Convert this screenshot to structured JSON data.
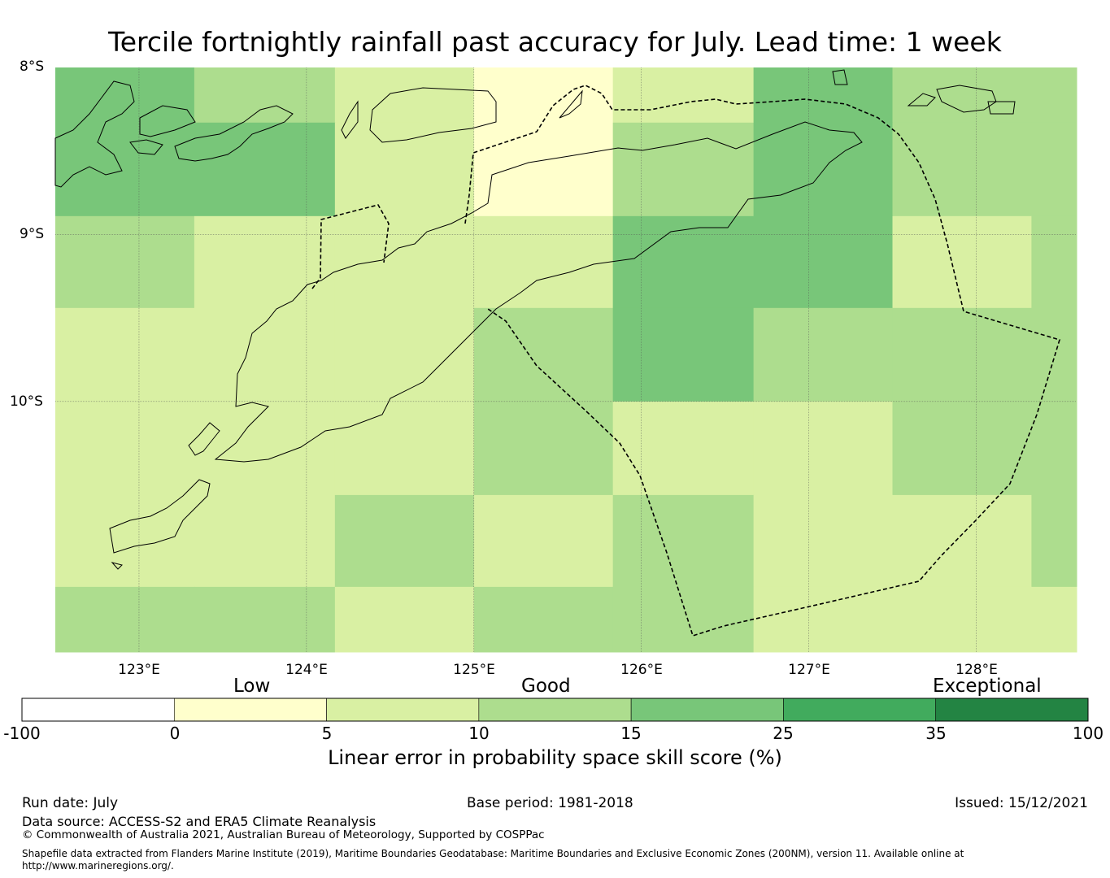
{
  "title": "Tercile fortnightly rainfall past accuracy for July. Lead time: 1 week",
  "map": {
    "lat_labels": [
      "8°S",
      "9°S",
      "10°S"
    ],
    "lon_labels": [
      "123°E",
      "124°E",
      "125°E",
      "126°E",
      "127°E",
      "128°E"
    ],
    "extent": {
      "lon": [
        122.5,
        128.6
      ],
      "lat": [
        -8.0,
        -11.5
      ]
    },
    "grid_lon_edges": [
      122.5,
      123.33,
      124.17,
      125.0,
      125.83,
      126.67,
      127.5,
      128.33,
      128.6
    ],
    "grid_lat_edges": [
      -8.0,
      -8.33,
      -8.89,
      -9.44,
      -10.0,
      -10.56,
      -11.11,
      -11.5
    ],
    "cell_levels": [
      [
        3,
        2,
        1,
        0,
        1,
        3,
        2,
        2
      ],
      [
        3,
        3,
        1,
        0,
        2,
        3,
        2,
        2
      ],
      [
        2,
        1,
        1,
        1,
        3,
        3,
        1,
        2
      ],
      [
        1,
        1,
        1,
        2,
        3,
        2,
        2,
        2
      ],
      [
        1,
        1,
        1,
        2,
        1,
        1,
        2,
        2
      ],
      [
        1,
        1,
        2,
        1,
        2,
        1,
        1,
        2
      ],
      [
        2,
        2,
        1,
        2,
        2,
        1,
        1,
        1
      ]
    ]
  },
  "colorbar": {
    "categories": [
      "Low",
      "Good",
      "Exceptional"
    ],
    "ticks": [
      "-100",
      "0",
      "5",
      "10",
      "15",
      "25",
      "35",
      "100"
    ],
    "colors": [
      "#ffffff",
      "#ffffcc",
      "#d9f0a3",
      "#addd8e",
      "#78c679",
      "#41ab5d",
      "#238443"
    ],
    "label": "Linear error in probability space skill score (%)"
  },
  "footer": {
    "run_date": "Run date: July",
    "base_period": "Base period: 1981-2018",
    "issued": "Issued: 15/12/2021",
    "data_source": "Data source: ACCESS-S2 and ERA5 Climate Reanalysis",
    "copyright": "© Commonwealth of Australia 2021, Australian Bureau of Meteorology, Supported by COSPPac",
    "shapefile_line1": "Shapefile data extracted from Flanders Marine Institute (2019), Maritime Boundaries Geodatabase: Maritime Boundaries and Exclusive Economic Zones (200NM), version 11. Available online at",
    "shapefile_line2": "http://www.marineregions.org/."
  }
}
